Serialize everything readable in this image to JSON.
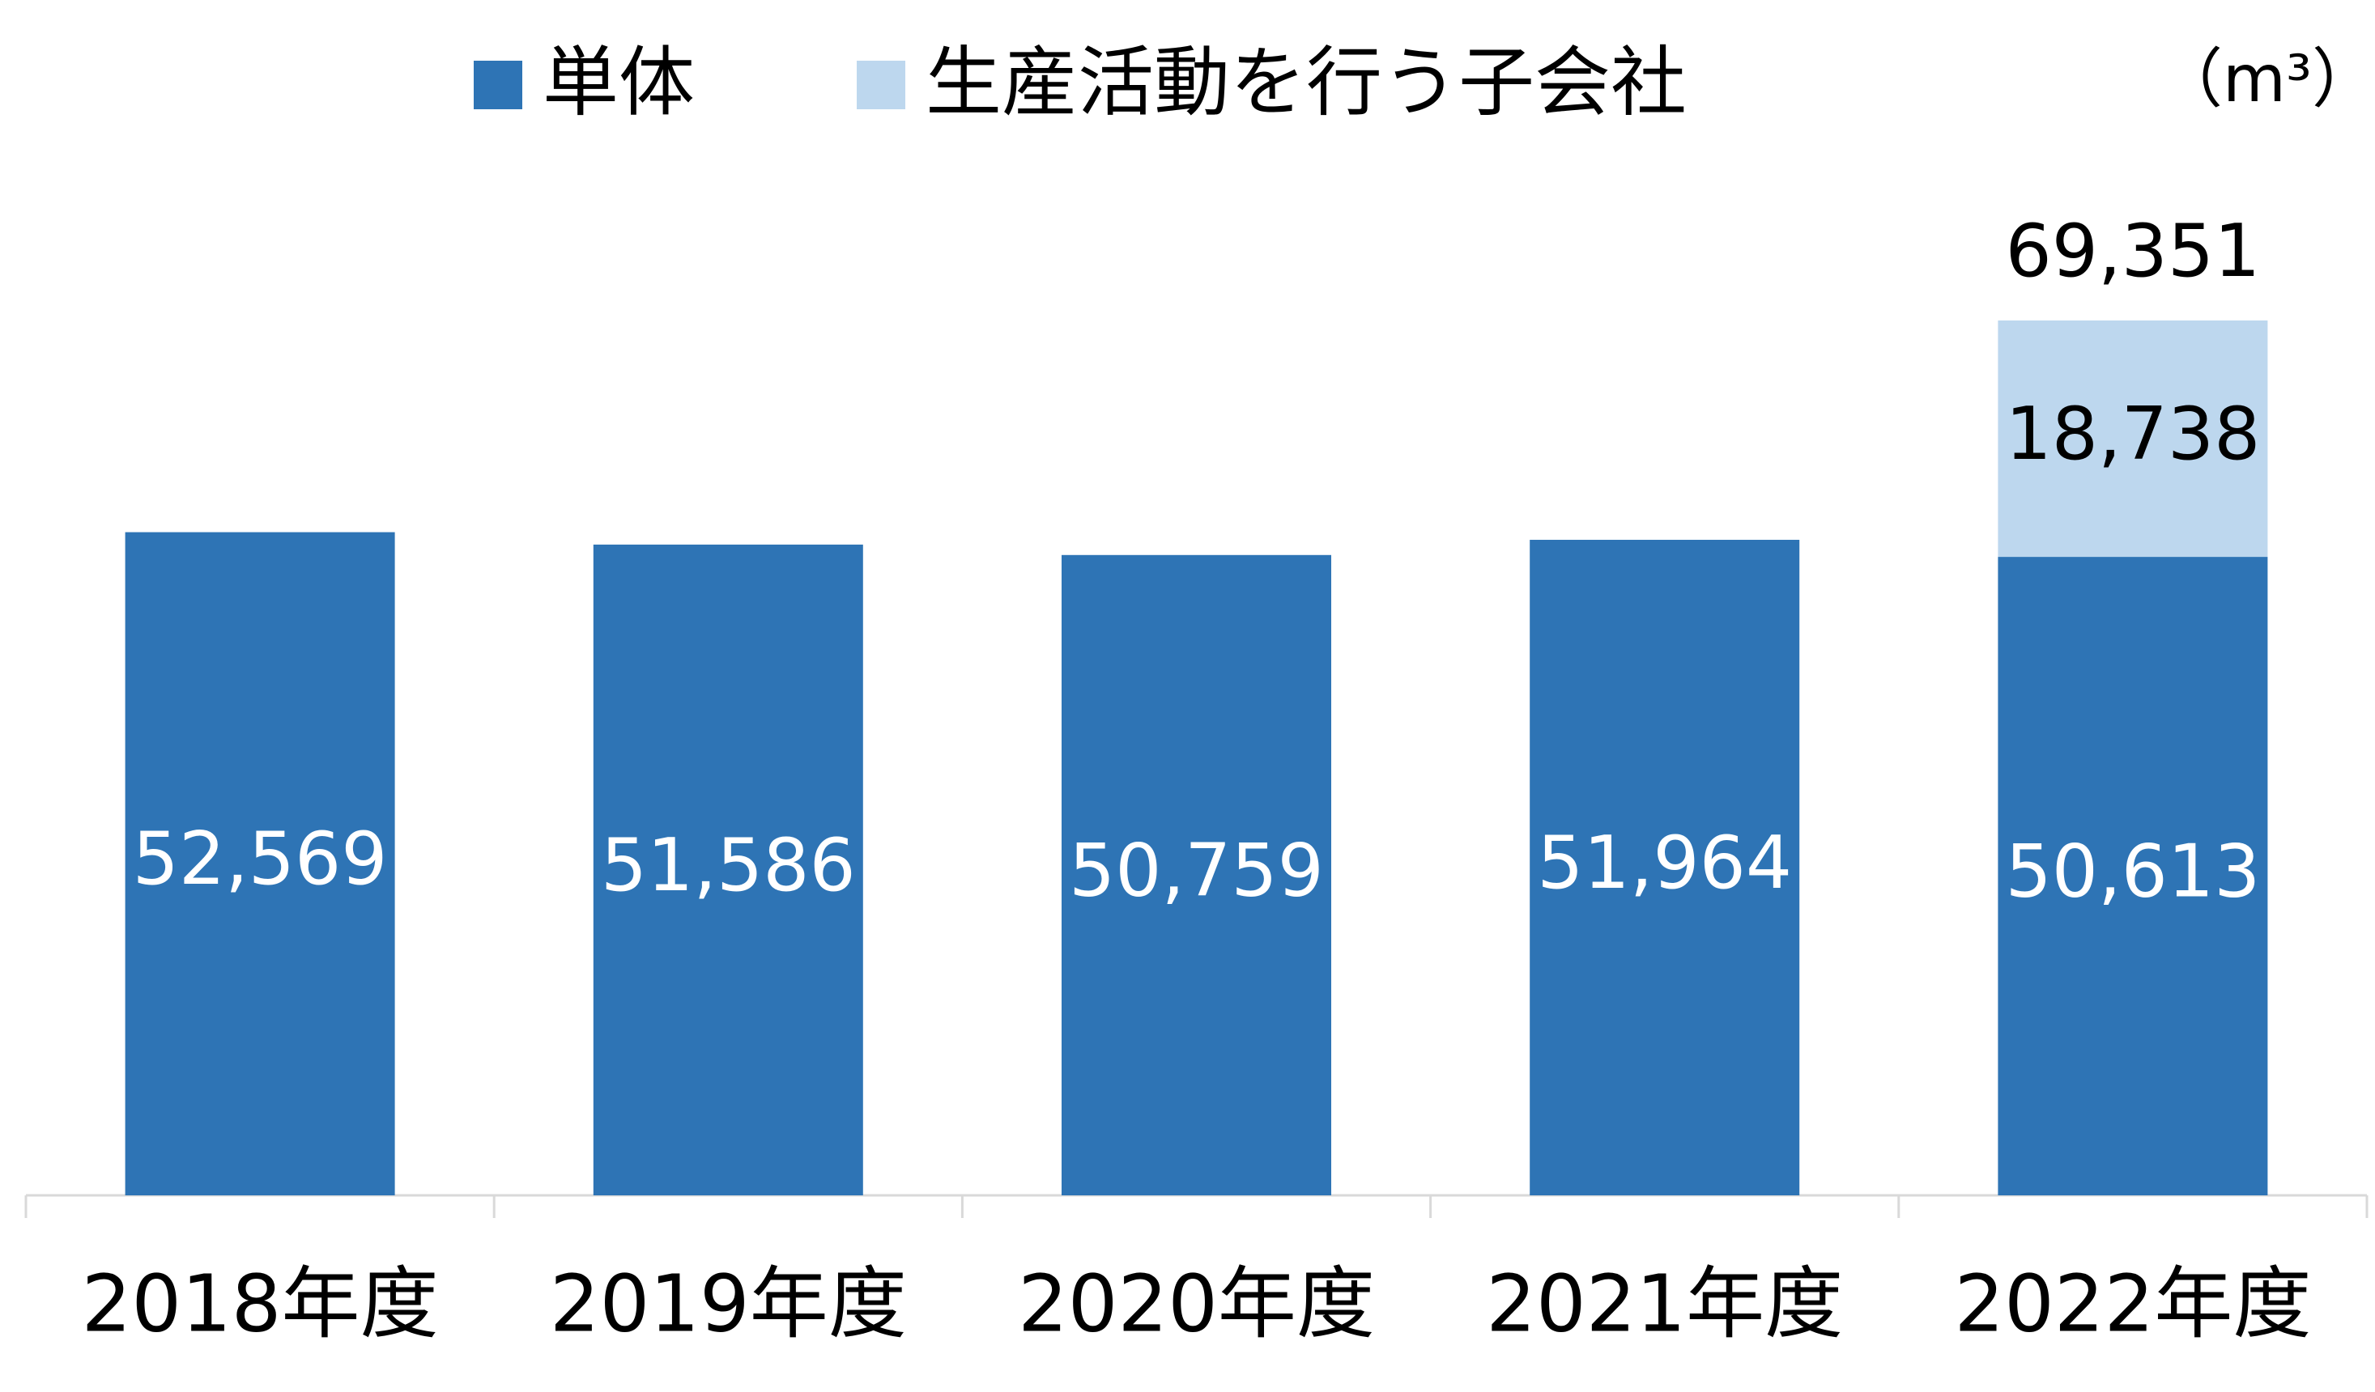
{
  "chart_data": {
    "type": "stacked_bar",
    "unit": "（m³）",
    "categories": [
      "2018年度",
      "2019年度",
      "2020年度",
      "2021年度",
      "2022年度"
    ],
    "series": [
      {
        "name": "単体",
        "color": "#2e74b5",
        "values": [
          52569,
          51586,
          50759,
          51964,
          50613
        ],
        "value_labels": [
          "52,569",
          "51,586",
          "50,759",
          "51,964",
          "50,613"
        ],
        "label_color": "#ffffff"
      },
      {
        "name": "生産活動を行う子会社",
        "color": "#bdd7ee",
        "values": [
          null,
          null,
          null,
          null,
          18738
        ],
        "value_labels": [
          null,
          null,
          null,
          null,
          "18,738"
        ],
        "label_color": "#000000"
      }
    ],
    "totals": [
      null,
      null,
      null,
      null,
      69351
    ],
    "total_labels": [
      null,
      null,
      null,
      null,
      "69,351"
    ],
    "ylim": [
      0,
      80000
    ],
    "legend": "top"
  }
}
